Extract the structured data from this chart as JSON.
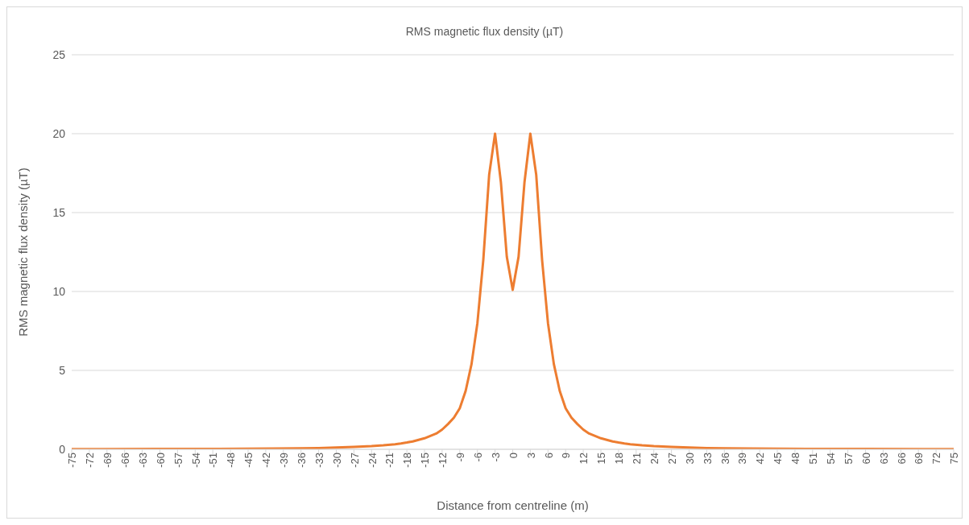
{
  "chart_data": {
    "type": "line",
    "title": "RMS magnetic flux density (µT)",
    "xlabel": "Distance from centreline (m)",
    "ylabel": "RMS magnetic flux density (µT)",
    "x": [
      -75,
      -70,
      -60,
      -50,
      -45,
      -40,
      -36,
      -33,
      -30,
      -27,
      -24,
      -22,
      -20,
      -19,
      -18,
      -17,
      -16,
      -15,
      -14,
      -13,
      -12,
      -11,
      -10,
      -9,
      -8,
      -7,
      -6,
      -5,
      -4,
      -3,
      -2,
      -1,
      0,
      1,
      2,
      3,
      4,
      5,
      6,
      7,
      8,
      9,
      10,
      11,
      12,
      13,
      14,
      15,
      16,
      17,
      18,
      19,
      20,
      22,
      24,
      27,
      30,
      33,
      36,
      40,
      45,
      50,
      60,
      70,
      75
    ],
    "series": [
      {
        "color": "#ed7d31",
        "values": [
          0.01,
          0.01,
          0.02,
          0.03,
          0.04,
          0.05,
          0.06,
          0.08,
          0.11,
          0.15,
          0.2,
          0.25,
          0.32,
          0.37,
          0.43,
          0.5,
          0.6,
          0.7,
          0.85,
          1.0,
          1.25,
          1.6,
          2.0,
          2.6,
          3.7,
          5.4,
          8.0,
          12.0,
          17.4,
          20.0,
          16.9,
          12.2,
          10.1,
          12.2,
          16.9,
          20.0,
          17.4,
          12.0,
          8.0,
          5.4,
          3.7,
          2.6,
          2.0,
          1.6,
          1.25,
          1.0,
          0.85,
          0.7,
          0.6,
          0.5,
          0.43,
          0.37,
          0.32,
          0.25,
          0.2,
          0.15,
          0.11,
          0.08,
          0.06,
          0.05,
          0.04,
          0.03,
          0.02,
          0.01,
          0.01
        ]
      }
    ],
    "xlim": [
      -75,
      75
    ],
    "xticks": [
      -75,
      -72,
      -69,
      -66,
      -63,
      -60,
      -57,
      -54,
      -51,
      -48,
      -45,
      -42,
      -39,
      -36,
      -33,
      -30,
      -27,
      -24,
      -21,
      -18,
      -15,
      -12,
      -9,
      -6,
      -3,
      0,
      3,
      6,
      9,
      12,
      15,
      18,
      21,
      24,
      27,
      30,
      33,
      36,
      39,
      42,
      45,
      48,
      51,
      54,
      57,
      60,
      63,
      66,
      69,
      72,
      75
    ],
    "ylim": [
      0,
      25
    ],
    "yticks": [
      0,
      5,
      10,
      15,
      20,
      25
    ],
    "grid": "y",
    "legend": false,
    "marker": "none",
    "line_style": "solid"
  }
}
